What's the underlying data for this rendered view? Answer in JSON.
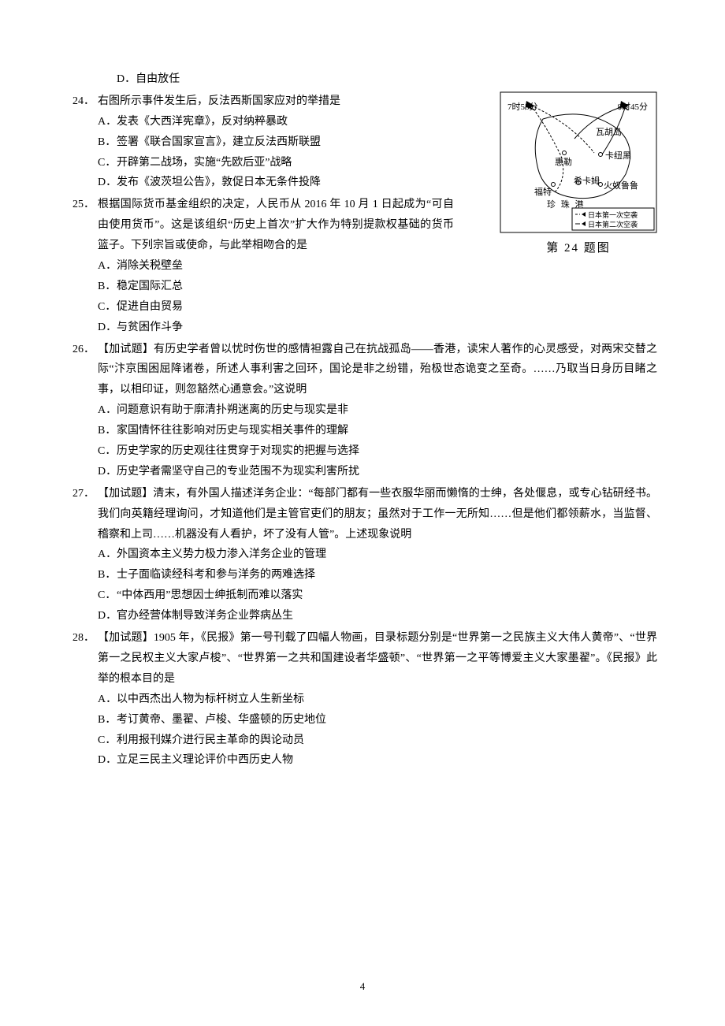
{
  "orphan_option": {
    "letter": "D．",
    "text": "自由放任"
  },
  "figure": {
    "caption": "第 24 题图",
    "labels": {
      "t1": "7时55分",
      "t2": "8时45分",
      "p1": "瓦胡岛",
      "p2": "惠勒",
      "p3": "卡纽黑",
      "p4": "福特",
      "p5": "希卡姆",
      "p6": "火奴鲁鲁",
      "p7": "珍 珠 港",
      "leg1": "日本第一次空袭",
      "leg2": "日本第二次空袭"
    }
  },
  "questions": [
    {
      "num": "24．",
      "stem": "右图所示事件发生后，反法西斯国家应对的举措是",
      "narrow": true,
      "options": [
        {
          "letter": "A．",
          "text": "发表《大西洋宪章》，反对纳粹暴政"
        },
        {
          "letter": "B．",
          "text": "签署《联合国家宣言》，建立反法西斯联盟"
        },
        {
          "letter": "C．",
          "text": "开辟第二战场，实施“先欧后亚”战略"
        },
        {
          "letter": "D．",
          "text": "发布《波茨坦公告》，敦促日本无条件投降"
        }
      ]
    },
    {
      "num": "25．",
      "stem": "根据国际货币基金组织的决定，人民币从 2016 年 10 月 1 日起成为“可自由使用货币”。这是该组织“历史上首次”扩大作为特别提款权基础的货币篮子。下列宗旨或使命，与此举相吻合的是",
      "narrow": true,
      "options": [
        {
          "letter": "A．",
          "text": "消除关税壁垒"
        },
        {
          "letter": "B．",
          "text": "稳定国际汇总"
        },
        {
          "letter": "C．",
          "text": "促进自由贸易"
        },
        {
          "letter": "D．",
          "text": "与贫困作斗争"
        }
      ]
    },
    {
      "num": "26．",
      "stem": "【加试题】有历史学者曾以忧时伤世的感情袒露自己在抗战孤岛——香港，读宋人著作的心灵感受，对两宋交替之际“汴京围困屈降诸卷，所述人事利害之回环，国论是非之纷错，殆极世态诡变之至奇。……乃取当日身历目睹之事，以相印证，则忽豁然心通意会。”这说明",
      "options": [
        {
          "letter": "A．",
          "text": "问题意识有助于廓清扑朔迷离的历史与现实是非"
        },
        {
          "letter": "B．",
          "text": "家国情怀往往影响对历史与现实相关事件的理解"
        },
        {
          "letter": "C．",
          "text": "历史学家的历史观往往贯穿于对现实的把握与选择"
        },
        {
          "letter": "D．",
          "text": "历史学者需坚守自己的专业范围不为现实利害所扰"
        }
      ]
    },
    {
      "num": "27．",
      "stem": "【加试题】清末，有外国人描述洋务企业：“每部门都有一些衣服华丽而懒惰的士绅，各处偃息，或专心钻研经书。我们向英籍经理询问，才知道他们是主管官吏们的朋友；虽然对于工作一无所知……但是他们都领薪水，当监督、稽察和上司……机器没有人看护，坏了没有人管”。上述现象说明",
      "options": [
        {
          "letter": "A．",
          "text": "外国资本主义势力极力渗入洋务企业的管理"
        },
        {
          "letter": "B．",
          "text": "士子面临读经科考和参与洋务的两难选择"
        },
        {
          "letter": "C．",
          "text": "“中体西用”思想因士绅抵制而难以落实"
        },
        {
          "letter": "D．",
          "text": "官办经营体制导致洋务企业弊病丛生"
        }
      ]
    },
    {
      "num": "28．",
      "stem": "【加试题】1905 年，《民报》第一号刊载了四幅人物画，目录标题分别是“世界第一之民族主义大伟人黄帝”、“世界第一之民权主义大家卢梭”、“世界第一之共和国建设者华盛顿”、“世界第一之平等博爱主义大家墨翟”。《民报》此举的根本目的是",
      "options": [
        {
          "letter": "A．",
          "text": "以中西杰出人物为标杆树立人生新坐标"
        },
        {
          "letter": "B．",
          "text": "考订黄帝、墨翟、卢梭、华盛顿的历史地位"
        },
        {
          "letter": "C．",
          "text": "利用报刊媒介进行民主革命的舆论动员"
        },
        {
          "letter": "D．",
          "text": "立足三民主义理论评价中西历史人物"
        }
      ]
    }
  ],
  "page_number": "4"
}
